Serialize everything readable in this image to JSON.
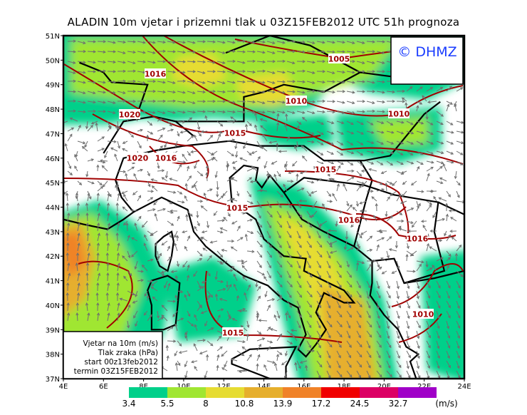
{
  "title": "ALADIN 10m vjetar i prizemni tlak u 03Z15FEB2012 UTC 51h prognoza",
  "copyright": "© DHMZ",
  "info_box": {
    "line1": "Vjetar na 10m (m/s)",
    "line2": "Tlak zraka (hPa)",
    "line3": "start 00z13feb2012",
    "line4": "termin 03Z15FEB2012"
  },
  "axes": {
    "lat_labels": [
      "51N",
      "50N",
      "49N",
      "48N",
      "47N",
      "46N",
      "45N",
      "44N",
      "43N",
      "42N",
      "41N",
      "40N",
      "39N",
      "38N",
      "37N"
    ],
    "lon_labels": [
      "4E",
      "6E",
      "8E",
      "10E",
      "12E",
      "14E",
      "16E",
      "18E",
      "20E",
      "22E",
      "24E"
    ]
  },
  "isobar_labels": [
    "1005",
    "1016",
    "1010",
    "1020",
    "1015",
    "1020",
    "1016",
    "1015",
    "1015",
    "1016",
    "1016",
    "1010",
    "1015",
    "1010"
  ],
  "legend": {
    "colors": [
      "#00d08a",
      "#a0e632",
      "#e6dc32",
      "#e6af2d",
      "#f08228",
      "#f00000",
      "#dc0064",
      "#a000c8"
    ],
    "values": [
      "3.4",
      "5.5",
      "8",
      "10.8",
      "13.9",
      "17.2",
      "24.5",
      "32.7"
    ],
    "unit": "(m/s)"
  },
  "colors": {
    "isobar": "#a00000",
    "arrow": "#6e6e6e",
    "border": "#000000",
    "copyright": "#1a3cff"
  }
}
